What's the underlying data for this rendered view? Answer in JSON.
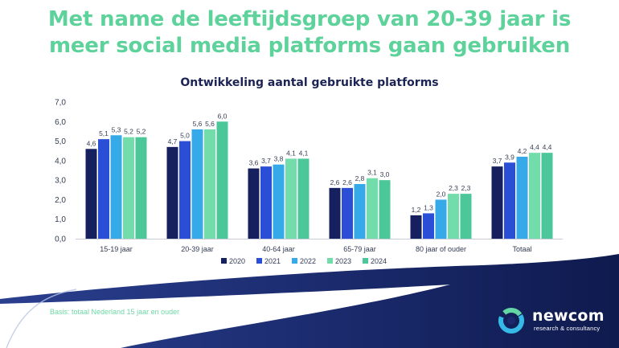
{
  "headline": {
    "line1": "Met name de leeftijdsgroep van 20-39 jaar is",
    "line2": "meer social media platforms gaan gebruiken"
  },
  "footer": {
    "basis": "Basis: totaal Nederland 15 jaar en ouder",
    "logo_name": "newcom",
    "logo_tagline": "research & consultancy"
  },
  "colors": {
    "headline": "#5ed29b",
    "title": "#1b2254",
    "wave": "#1a2a6c"
  },
  "chart_data": {
    "type": "bar",
    "title": "Ontwikkeling aantal gebruikte platforms",
    "xlabel": "",
    "ylabel": "",
    "ylim": [
      0,
      7
    ],
    "yticks": [
      "0,0",
      "1,0",
      "2,0",
      "3,0",
      "4,0",
      "5,0",
      "6,0",
      "7,0"
    ],
    "grid": false,
    "legend_position": "bottom",
    "categories": [
      "15-19 jaar",
      "20-39 jaar",
      "40-64 jaar",
      "65-79 jaar",
      "80 jaar of ouder",
      "Totaal"
    ],
    "series": [
      {
        "name": "2020",
        "color": "#16205e",
        "values": [
          4.6,
          4.7,
          3.6,
          2.6,
          1.2,
          3.7
        ],
        "labels": [
          "4,6",
          "4,7",
          "3,6",
          "2,6",
          "1,2",
          "3,7"
        ]
      },
      {
        "name": "2021",
        "color": "#2a4fd6",
        "values": [
          5.1,
          5.0,
          3.7,
          2.6,
          1.3,
          3.9
        ],
        "labels": [
          "5,1",
          "5,0",
          "3,7",
          "2,6",
          "1,3",
          "3,9"
        ]
      },
      {
        "name": "2022",
        "color": "#36a9e8",
        "values": [
          5.3,
          5.6,
          3.8,
          2.8,
          2.0,
          4.2
        ],
        "labels": [
          "5,3",
          "5,6",
          "3,8",
          "2,8",
          "2,0",
          "4,2"
        ]
      },
      {
        "name": "2023",
        "color": "#72dcaa",
        "values": [
          5.2,
          5.6,
          4.1,
          3.1,
          2.3,
          4.4
        ],
        "labels": [
          "5,2",
          "5,6",
          "4,1",
          "3,1",
          "2,3",
          "4,4"
        ]
      },
      {
        "name": "2024",
        "color": "#4cc79a",
        "values": [
          5.2,
          6.0,
          4.1,
          3.0,
          2.3,
          4.4
        ],
        "labels": [
          "5,2",
          "6,0",
          "4,1",
          "3,0",
          "2,3",
          "4,4"
        ]
      }
    ]
  }
}
